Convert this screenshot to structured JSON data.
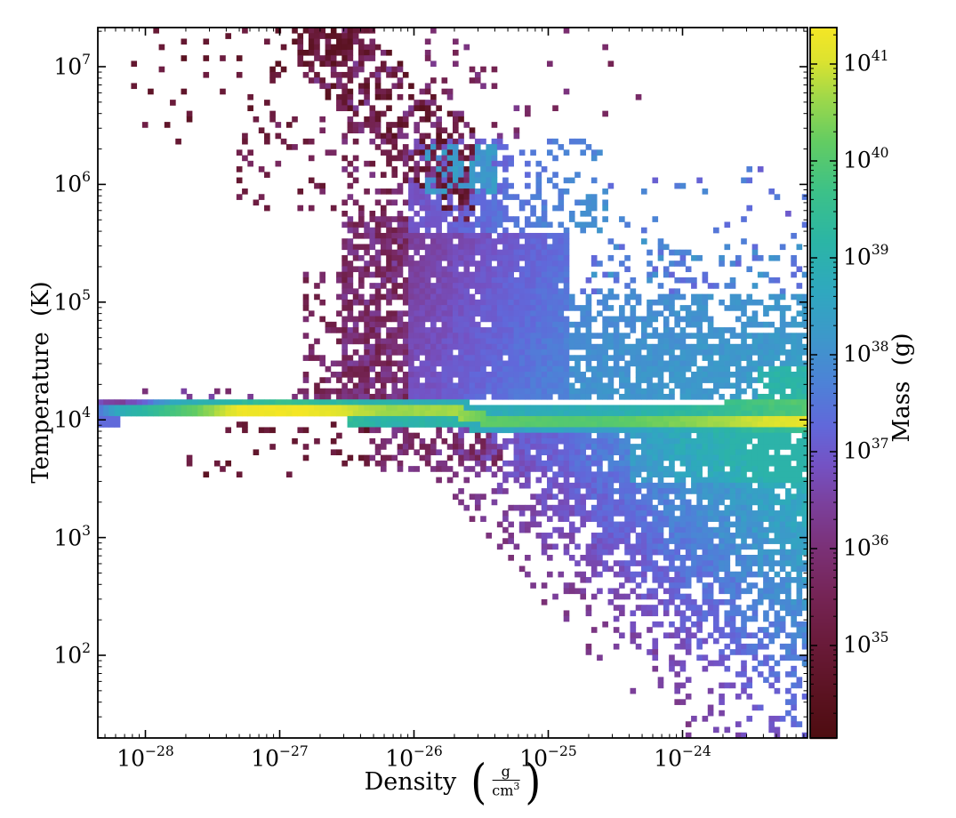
{
  "figure": {
    "background_color": "#ffffff",
    "axes_color": "#000000"
  },
  "chart_data": {
    "type": "heatmap",
    "subtype": "2d-phase-histogram",
    "title": "",
    "xlabel_word": "Density",
    "xlabel_unit": {
      "paren_open": "(",
      "num": "g",
      "den_base": "cm",
      "den_exp": "3",
      "paren_close": ")"
    },
    "ylabel": "Temperature (K)",
    "colorbar_label": "Mass (g)",
    "x_axis": {
      "scale": "log",
      "min": 4.4e-29,
      "max": 8.6e-24,
      "tick_exponents": [
        -28,
        -27,
        -26,
        -25,
        -24
      ],
      "unit": "g/cm^3",
      "grid": false
    },
    "y_axis": {
      "scale": "log",
      "min": 20.0,
      "max": 21500000.0,
      "tick_exponents": [
        7,
        6,
        5,
        4,
        3,
        2
      ],
      "unit": "K",
      "grid": false
    },
    "color_axis": {
      "scale": "log",
      "min": 1.1e+34,
      "max": 2.4e+41,
      "tick_exponents": [
        41,
        40,
        39,
        38,
        37,
        36,
        35
      ],
      "unit": "g",
      "legend_position": "right-colorbar"
    },
    "bins": {
      "nx": 128,
      "ny": 128
    },
    "colormap": {
      "name": "arbre-like",
      "stops": [
        [
          0.0,
          "#4e0c10"
        ],
        [
          0.06,
          "#5a1220"
        ],
        [
          0.13,
          "#691a38"
        ],
        [
          0.2,
          "#752455"
        ],
        [
          0.27,
          "#7b3178"
        ],
        [
          0.33,
          "#7b409c"
        ],
        [
          0.385,
          "#7452c4"
        ],
        [
          0.44,
          "#6168da"
        ],
        [
          0.5,
          "#4d82d7"
        ],
        [
          0.565,
          "#3d98ca"
        ],
        [
          0.63,
          "#2fa8bf"
        ],
        [
          0.7,
          "#2bb5a5"
        ],
        [
          0.77,
          "#3cc188"
        ],
        [
          0.84,
          "#63cc62"
        ],
        [
          0.9,
          "#9dd84a"
        ],
        [
          0.955,
          "#dde32f"
        ],
        [
          1.0,
          "#f4e625"
        ]
      ]
    },
    "distribution_model": {
      "seed": 20,
      "band": {
        "step_u": [
          -25.7,
          -25.45
        ],
        "v_left": 4.07,
        "v_right": 3.99,
        "mcore_points": [
          [
            -28.36,
            37.4
          ],
          [
            -28.2,
            38.8
          ],
          [
            -27.95,
            39.4
          ],
          [
            -27.6,
            40.3
          ],
          [
            -27.3,
            41.3
          ],
          [
            -26.8,
            41.35
          ],
          [
            -26.5,
            41.0
          ],
          [
            -26.2,
            40.6
          ],
          [
            -25.7,
            40.7
          ],
          [
            -25.45,
            40.1
          ],
          [
            -24.6,
            40.0
          ],
          [
            -23.9,
            40.5
          ],
          [
            -23.4,
            41.0
          ],
          [
            -23.05,
            41.2
          ]
        ],
        "mupper_points": [
          [
            -28.36,
            36.8
          ],
          [
            -28.2,
            36.3
          ],
          [
            -28.0,
            37.3
          ],
          [
            -27.8,
            38.6
          ],
          [
            -27.4,
            39.2
          ],
          [
            -27.0,
            39.6
          ],
          [
            -26.6,
            39.3
          ],
          [
            -26.0,
            38.9
          ],
          [
            -25.45,
            38.8
          ],
          [
            -24.5,
            38.9
          ],
          [
            -23.6,
            39.6
          ],
          [
            -23.05,
            40.0
          ]
        ]
      },
      "regions": [
        {
          "type": "strip",
          "name": "upper-plume-trail",
          "u": [
            -26.88,
            -25.55
          ],
          "v": [
            5.6,
            7.33
          ],
          "v0": 7.4,
          "uref": -26.88,
          "slope": -1.05,
          "halfwidth": 0.45,
          "p": 0.42,
          "m": [
            34.4,
            35.6
          ],
          "hi_chance": 0.25,
          "hi_m": [
            35.7,
            36.4
          ]
        },
        {
          "type": "box",
          "name": "top-cluster",
          "u": [
            -26.85,
            -26.28
          ],
          "v": [
            7.0,
            7.33
          ],
          "p": 0.5,
          "m": [
            34.35,
            35.3
          ]
        },
        {
          "type": "box",
          "name": "topleft-scatter",
          "u": [
            -28.16,
            -26.85
          ],
          "v": [
            6.35,
            7.33
          ],
          "p": 0.055,
          "m": [
            34.5,
            35.3
          ]
        },
        {
          "type": "box",
          "name": "near-trail-scatter",
          "u": [
            -25.9,
            -25.2
          ],
          "v": [
            6.4,
            7.25
          ],
          "p": 0.1,
          "m": [
            35.3,
            36.3
          ]
        },
        {
          "type": "box",
          "name": "midleft-scatter",
          "u": [
            -27.35,
            -26.55
          ],
          "v": [
            5.75,
            6.6
          ],
          "p": 0.1,
          "m": [
            34.8,
            35.8
          ]
        },
        {
          "type": "box",
          "name": "column-fringe",
          "u": [
            -26.83,
            -26.55
          ],
          "v": [
            4.18,
            5.25
          ],
          "p": 0.28,
          "m": [
            35.1,
            36.2
          ]
        },
        {
          "type": "box",
          "name": "purple-column",
          "u": [
            -26.55,
            -26.04
          ],
          "v": [
            4.16,
            5.72
          ],
          "p": 0.78,
          "m": [
            35.2,
            36.5
          ]
        },
        {
          "type": "box",
          "name": "column-top",
          "u": [
            -26.55,
            -26.04
          ],
          "v": [
            5.72,
            6.55
          ],
          "p": 0.3,
          "m": [
            35.0,
            36.2
          ]
        },
        {
          "type": "box",
          "name": "teal-pocket",
          "u": [
            -25.92,
            -25.38
          ],
          "v": [
            5.9,
            6.32
          ],
          "p": 0.85,
          "m": [
            37.9,
            38.5
          ]
        },
        {
          "type": "grad",
          "name": "cloud-upper",
          "u": [
            -26.04,
            -24.55
          ],
          "v": [
            5.6,
            6.38
          ],
          "p": 0.8,
          "p_above": [
            6.08,
            0.5
          ],
          "p_right": [
            -25.3,
            0.45
          ],
          "m0": 36.9,
          "gu": 0.8,
          "gv": -0.3,
          "jitter": 0.35,
          "clamp": [
            36.2,
            38.2
          ]
        },
        {
          "type": "grad",
          "name": "cloud-main",
          "u": [
            -26.04,
            -24.85
          ],
          "v": [
            4.16,
            5.6
          ],
          "p": 0.96,
          "m0": 36.8,
          "gu": 0.85,
          "gv": -0.3,
          "jitter": 0.3,
          "clamp": [
            36.0,
            38.5
          ]
        },
        {
          "type": "grad",
          "name": "cloud-right",
          "u": [
            -24.85,
            -23.06
          ],
          "v": [
            4.16,
            5.05
          ],
          "p": 0.82,
          "p_above": [
            4.72,
            0.55
          ],
          "m0": 38.05,
          "gu": 0.18,
          "gv": -0.25,
          "jitter": 0.3,
          "clamp": [
            37.3,
            38.85
          ],
          "boost": [
            -23.45,
            4.45,
            0.8
          ]
        },
        {
          "type": "box",
          "name": "right-halo-low",
          "u": [
            -24.85,
            -23.06
          ],
          "v": [
            5.05,
            5.55
          ],
          "p": 0.2,
          "m": [
            37.2,
            38.2
          ]
        },
        {
          "type": "box",
          "name": "right-halo-high",
          "u": [
            -24.6,
            -23.06
          ],
          "v": [
            5.55,
            6.15
          ],
          "p": 0.05,
          "m": [
            37.0,
            37.9
          ]
        },
        {
          "type": "box",
          "name": "upper-sprinkle",
          "u": [
            -26.0,
            -24.3
          ],
          "v": [
            6.3,
            7.33
          ],
          "p": 0.03,
          "m": [
            35.4,
            36.4
          ]
        },
        {
          "type": "box",
          "name": "below-band-purple",
          "u": [
            -26.32,
            -25.35
          ],
          "v": [
            3.58,
            3.94
          ],
          "p": 0.45,
          "m": [
            35.3,
            36.3
          ]
        },
        {
          "type": "box",
          "name": "below-band-maroon",
          "u": [
            -27.75,
            -26.32
          ],
          "v": [
            3.5,
            3.94
          ],
          "p": 0.05,
          "m": [
            34.5,
            35.4
          ]
        },
        {
          "type": "box",
          "name": "below-band-dots",
          "u": [
            -27.45,
            -26.32
          ],
          "v": [
            3.88,
            3.97
          ],
          "p": 0.18,
          "m": [
            34.5,
            35.3
          ]
        },
        {
          "type": "fan",
          "name": "lower-right-fan",
          "u0": -26.55,
          "v0": 3.92,
          "uref": -26.2,
          "slope": 1.28,
          "vmax": 3.94,
          "m0": 36.1,
          "gu": 1.0,
          "jitter": 0.5,
          "clamp": [
            35.5,
            39.0
          ],
          "boost_v": 3.45,
          "boost_u": -24.4,
          "boost": 0.5
        }
      ]
    }
  }
}
